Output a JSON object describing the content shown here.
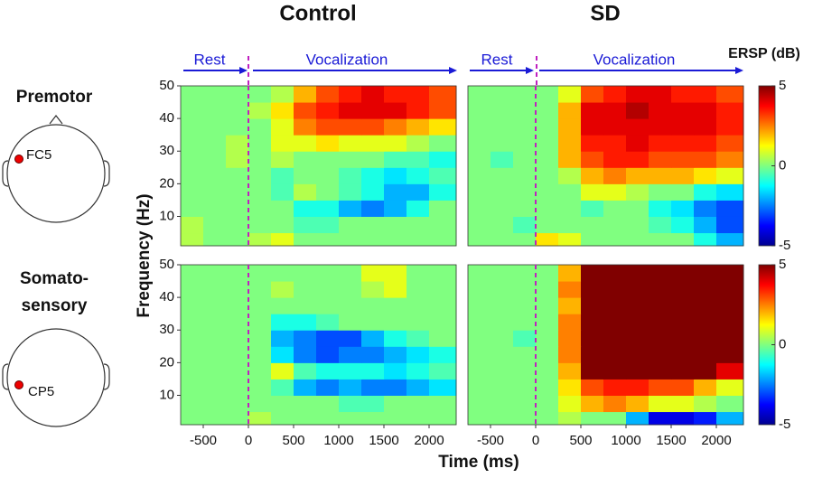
{
  "columns": [
    "Control",
    "SD"
  ],
  "phases": [
    "Rest",
    "Vocalization"
  ],
  "rows": [
    {
      "region": [
        "Premotor"
      ],
      "electrode": "FC5"
    },
    {
      "region": [
        "Somato-",
        "sensory"
      ],
      "electrode": "CP5"
    }
  ],
  "xlabel": "Time (ms)",
  "ylabel": "Frequency (Hz)",
  "colorbar": {
    "label": "ERSP (dB)",
    "clim": [
      -5,
      5
    ],
    "ticks": [
      -5,
      0,
      5
    ]
  },
  "chart_data": [
    {
      "type": "heatmap",
      "xlim": [
        -750,
        2300
      ],
      "ylim": [
        1,
        50
      ],
      "event_time": 0,
      "yticks": [
        10,
        20,
        30,
        40,
        50
      ],
      "x_edges": [
        -750,
        -500,
        -250,
        0,
        250,
        500,
        750,
        1000,
        1250,
        1500,
        1750,
        2000,
        2300
      ],
      "y_edges": [
        1,
        5,
        10,
        15,
        20,
        25,
        30,
        35,
        40,
        45,
        50
      ],
      "z": [
        [
          0.5,
          0,
          0,
          0.5,
          1,
          0,
          0,
          0,
          0,
          0,
          0,
          0
        ],
        [
          0.5,
          0,
          0,
          0,
          0,
          -0.5,
          -0.5,
          0,
          0,
          0,
          0,
          0
        ],
        [
          0,
          0,
          0,
          0,
          0,
          -1,
          -1,
          -2,
          -2.5,
          -2,
          -1,
          0
        ],
        [
          0,
          0,
          0,
          0,
          -0.5,
          0.5,
          0,
          -0.5,
          -1,
          -2,
          -2,
          -1
        ],
        [
          0,
          0,
          0,
          0,
          -0.5,
          0,
          0,
          -0.5,
          -1,
          -1.5,
          -1,
          -0.5
        ],
        [
          0,
          0,
          0.5,
          0,
          0.5,
          0,
          0,
          0,
          0,
          -0.5,
          -0.5,
          -1
        ],
        [
          0,
          0,
          0.5,
          0,
          1,
          1,
          1.5,
          1,
          1,
          1,
          0.5,
          0
        ],
        [
          0,
          0,
          0,
          0,
          1,
          2.5,
          3,
          3,
          3,
          2.5,
          2,
          1.5
        ],
        [
          0,
          0,
          0,
          0.5,
          1.5,
          3,
          3.5,
          4,
          4,
          4,
          3.5,
          3
        ],
        [
          0,
          0,
          0,
          0,
          0.5,
          2,
          3,
          3.5,
          4,
          3.5,
          3.5,
          3
        ]
      ]
    },
    {
      "type": "heatmap",
      "xlim": [
        -750,
        2300
      ],
      "ylim": [
        1,
        50
      ],
      "event_time": 0,
      "x_edges": [
        -750,
        -500,
        -250,
        0,
        250,
        500,
        750,
        1000,
        1250,
        1500,
        1750,
        2000,
        2300
      ],
      "y_edges": [
        1,
        5,
        10,
        15,
        20,
        25,
        30,
        35,
        40,
        45,
        50
      ],
      "z": [
        [
          0,
          0,
          0,
          1.5,
          1,
          0,
          0,
          0,
          0,
          0,
          -1,
          -2
        ],
        [
          0,
          0,
          -0.5,
          0,
          0,
          0,
          0,
          0,
          -0.5,
          -1,
          -2,
          -3
        ],
        [
          0,
          0,
          0,
          0,
          0,
          -0.5,
          0,
          0,
          -1,
          -1.5,
          -2.5,
          -3
        ],
        [
          0,
          0,
          0,
          0,
          0,
          1,
          1,
          0.5,
          0,
          0,
          -1,
          -1.5
        ],
        [
          0,
          0,
          0,
          0,
          0.5,
          2,
          2.5,
          2,
          2,
          2,
          1.5,
          1
        ],
        [
          0,
          -0.5,
          0,
          0,
          2,
          3,
          3.5,
          3.5,
          3,
          3,
          3,
          2.5
        ],
        [
          0,
          0,
          0,
          0,
          2,
          3.5,
          3.5,
          4,
          3.5,
          3.5,
          3.5,
          3
        ],
        [
          0,
          0,
          0,
          0,
          2,
          4,
          4,
          4,
          4,
          4,
          4,
          3.5
        ],
        [
          0,
          0,
          0,
          0,
          2,
          4,
          4,
          4.5,
          4,
          4,
          4,
          3.5
        ],
        [
          0,
          0,
          0,
          0,
          1,
          3,
          3.5,
          4,
          4,
          3.5,
          3.5,
          3
        ]
      ]
    },
    {
      "type": "heatmap",
      "xlim": [
        -750,
        2300
      ],
      "ylim": [
        1,
        50
      ],
      "event_time": 0,
      "yticks": [
        10,
        20,
        30,
        40,
        50
      ],
      "xticks": [
        -500,
        0,
        500,
        1000,
        1500,
        2000
      ],
      "x_edges": [
        -750,
        -500,
        -250,
        0,
        250,
        500,
        750,
        1000,
        1250,
        1500,
        1750,
        2000,
        2300
      ],
      "y_edges": [
        1,
        5,
        10,
        15,
        20,
        25,
        30,
        35,
        40,
        45,
        50
      ],
      "z": [
        [
          0,
          0,
          0,
          0.5,
          0,
          0,
          0,
          0,
          0,
          0,
          0,
          0
        ],
        [
          0,
          0,
          0,
          0,
          0,
          0,
          0,
          -0.5,
          -0.5,
          0,
          0,
          0
        ],
        [
          0,
          0,
          0,
          0,
          -0.5,
          -2,
          -2.5,
          -2,
          -2.5,
          -2.5,
          -2,
          -1.5
        ],
        [
          0,
          0,
          0,
          0,
          1,
          -0.5,
          -1,
          -1,
          -1,
          -1.5,
          -1,
          -0.5
        ],
        [
          0,
          0,
          0,
          0,
          -1.5,
          -2.5,
          -3,
          -2.5,
          -2.5,
          -2,
          -1.5,
          -1
        ],
        [
          0,
          0,
          0,
          0,
          -2,
          -2.5,
          -3,
          -3,
          -2,
          -1,
          -0.5,
          0
        ],
        [
          0,
          0,
          0,
          0,
          -1,
          -1,
          -0.5,
          0,
          0,
          0,
          0,
          0
        ],
        [
          0,
          0,
          0,
          0,
          0,
          0,
          0,
          0,
          0,
          0,
          0,
          0
        ],
        [
          0,
          0,
          0,
          0,
          0.5,
          0,
          0,
          0,
          0.5,
          1,
          0,
          0
        ],
        [
          0,
          0,
          0,
          0,
          0,
          0,
          0,
          0,
          1,
          1,
          0,
          0
        ]
      ]
    },
    {
      "type": "heatmap",
      "xlim": [
        -750,
        2300
      ],
      "ylim": [
        1,
        50
      ],
      "event_time": 0,
      "xticks": [
        -500,
        0,
        500,
        1000,
        1500,
        2000
      ],
      "x_edges": [
        -750,
        -500,
        -250,
        0,
        250,
        500,
        750,
        1000,
        1250,
        1500,
        1750,
        2000,
        2300
      ],
      "y_edges": [
        1,
        5,
        10,
        15,
        20,
        25,
        30,
        35,
        40,
        45,
        50
      ],
      "z": [
        [
          0,
          0,
          0,
          0,
          0.5,
          0,
          0,
          -2,
          -4,
          -4,
          -3.5,
          -2
        ],
        [
          0,
          0,
          0,
          0,
          1,
          2,
          2.5,
          2,
          1,
          1,
          0.5,
          0
        ],
        [
          0,
          0,
          0,
          0,
          1.5,
          3,
          3.5,
          3.5,
          3,
          3,
          2,
          1
        ],
        [
          0,
          0,
          0,
          0,
          2,
          5,
          5,
          5,
          5,
          5,
          5,
          4
        ],
        [
          0,
          0,
          0,
          0,
          2.5,
          5,
          5,
          5,
          5,
          5,
          5,
          5
        ],
        [
          0,
          0,
          -0.5,
          0,
          2.5,
          5,
          5,
          5,
          5,
          5,
          5,
          5
        ],
        [
          0,
          0,
          0,
          0,
          2.5,
          5,
          5,
          5,
          5,
          5,
          5,
          5
        ],
        [
          0,
          0,
          0,
          0,
          2,
          5,
          5,
          5,
          5,
          5,
          5,
          5
        ],
        [
          0,
          0,
          0,
          0,
          2.5,
          5,
          5,
          5,
          5,
          5,
          5,
          5
        ],
        [
          0,
          0,
          0,
          0,
          2,
          5,
          5,
          5,
          5,
          5,
          5,
          5
        ]
      ]
    }
  ]
}
